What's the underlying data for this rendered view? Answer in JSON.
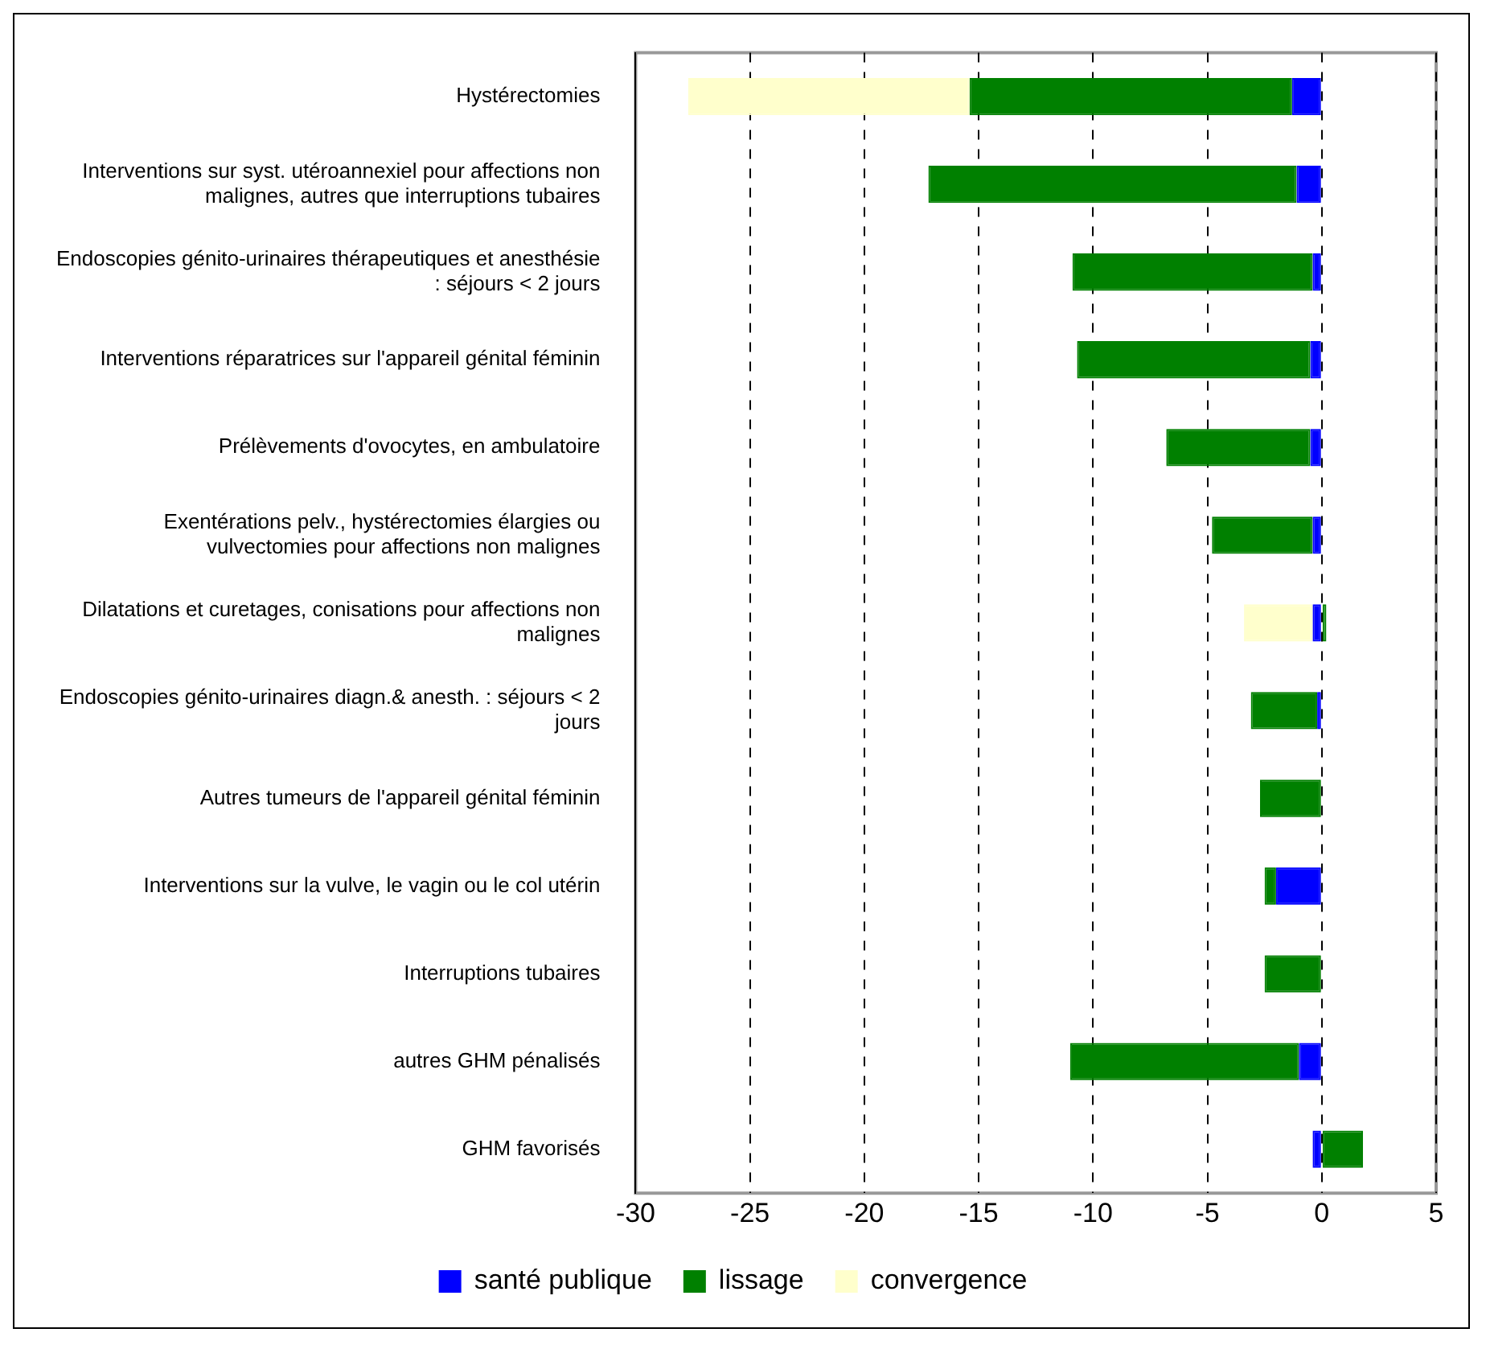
{
  "chart_data": {
    "type": "bar",
    "orientation": "horizontal",
    "stacked": true,
    "categories": [
      "Hystérectomies",
      "Interventions sur syst. utéroannexiel pour affections non malignes, autres que interruptions tubaires",
      "Endoscopies génito-urinaires thérapeutiques et anesthésie : séjours < 2 jours",
      "Interventions réparatrices sur l'appareil génital féminin",
      "Prélèvements d'ovocytes, en ambulatoire",
      "Exentérations pelv., hystérectomies élargies ou vulvectomies pour affections non malignes",
      "Dilatations et curetages, conisations pour affections non malignes",
      "Endoscopies génito-urinaires diagn.& anesth. : séjours < 2 jours",
      "Autres tumeurs de l'appareil génital féminin",
      "Interventions sur la vulve, le vagin ou le col utérin",
      "Interruptions tubaires",
      "autres GHM pénalisés",
      "GHM favorisés"
    ],
    "series": [
      {
        "name": "santé publique",
        "color": "#0000ff",
        "values": [
          -1.3,
          -1.1,
          -0.4,
          -0.5,
          -0.5,
          -0.4,
          -0.4,
          -0.2,
          null,
          -2.0,
          null,
          -1.0,
          -0.4
        ]
      },
      {
        "name": "lissage",
        "color": "#008000",
        "values": [
          -14.1,
          -16.1,
          -10.5,
          -10.2,
          -6.3,
          -4.4,
          0.2,
          -2.9,
          -2.7,
          -0.5,
          -2.5,
          -10.0,
          1.8
        ]
      },
      {
        "name": "convergence",
        "color": "#ffffcc",
        "values": [
          -12.3,
          null,
          null,
          null,
          null,
          null,
          -3.0,
          null,
          null,
          null,
          null,
          null,
          null
        ]
      }
    ],
    "xlim": [
      -30,
      5
    ],
    "xticks": [
      -30,
      -25,
      -20,
      -15,
      -10,
      -5,
      0,
      5
    ],
    "grid": "x",
    "legend": "bottom"
  }
}
